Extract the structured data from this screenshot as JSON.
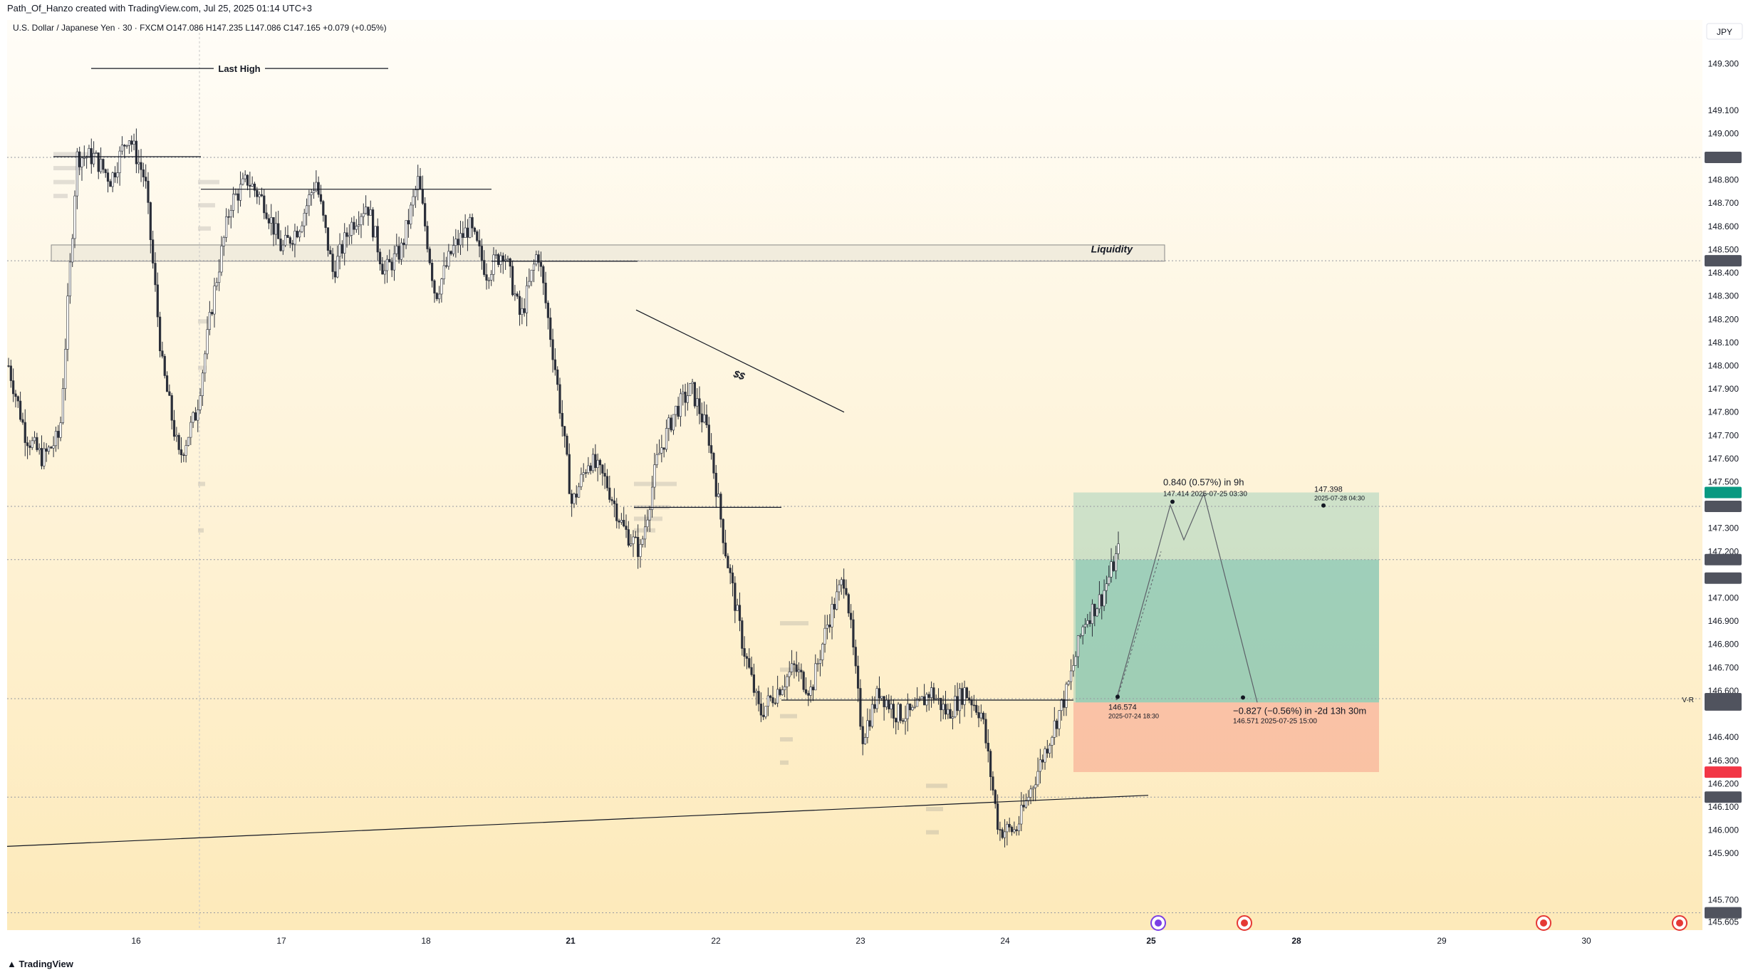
{
  "credit": "Path_Of_Hanzo created with TradingView.com, Jul 25, 2025 01:14 UTC+3",
  "header": {
    "symbol": "U.S. Dollar / Japanese Yen · 30 · FXCM",
    "ohlc": "O147.086 H147.235 L147.086 C147.165 +0.079 (+0.05%)"
  },
  "currency": "JPY",
  "footer": "TradingView",
  "colors": {
    "bg_top": "#fffdf8",
    "bg_bottom": "#fde9b8",
    "candle": "#2a2e39",
    "profit_zone": "#26a69a",
    "loss_zone": "#ef5350",
    "tag_dark": "#50535e",
    "tag_green": "#089981",
    "tag_red": "#f23645"
  },
  "chart_data": {
    "type": "candlestick",
    "symbol": "USDJPY",
    "timeframe": "30",
    "ylim": [
      145.6,
      149.4
    ],
    "y_ticks": [
      149.3,
      149.1,
      149.0,
      148.8,
      148.7,
      148.6,
      148.5,
      148.4,
      148.3,
      148.2,
      148.1,
      148.0,
      147.9,
      147.8,
      147.7,
      147.6,
      147.5,
      147.3,
      147.2,
      147.0,
      146.9,
      146.8,
      146.7,
      146.6,
      146.4,
      146.3,
      146.2,
      146.1,
      146.0,
      145.9,
      145.7,
      145.605
    ],
    "x_labels": [
      "16",
      "17",
      "18",
      "21",
      "22",
      "23",
      "24",
      "25",
      "28",
      "29",
      "30"
    ],
    "path": [
      148.0,
      147.7,
      147.6,
      147.7,
      148.9,
      148.9,
      148.8,
      149.0,
      148.8,
      148.0,
      147.6,
      147.8,
      148.3,
      148.7,
      148.8,
      148.7,
      148.5,
      148.6,
      148.8,
      148.4,
      148.6,
      148.7,
      148.4,
      148.5,
      148.8,
      148.3,
      148.5,
      148.6,
      148.4,
      148.5,
      148.2,
      148.5,
      148.0,
      147.4,
      147.6,
      147.5,
      147.3,
      147.2,
      147.6,
      147.8,
      147.9,
      147.7,
      147.2,
      146.8,
      146.5,
      146.6,
      146.7,
      146.6,
      146.9,
      147.1,
      146.4,
      146.6,
      146.5,
      146.5,
      146.6,
      146.5,
      146.6,
      146.5,
      146.0,
      146.0,
      146.2,
      146.4,
      146.6,
      146.9,
      147.0,
      147.2
    ],
    "price_tags": [
      {
        "label": "148.897",
        "value": 148.897,
        "style": "dark"
      },
      {
        "label": "148.452",
        "value": 148.452,
        "style": "dark"
      },
      {
        "label": "147.454",
        "value": 147.454,
        "style": "green"
      },
      {
        "label": "147.394",
        "value": 147.394,
        "style": "dark"
      },
      {
        "label": "147.165",
        "value": 147.165,
        "style": "dark"
      },
      {
        "label": "15:35",
        "value": 147.085,
        "style": "dark"
      },
      {
        "label": "146.566",
        "value": 146.566,
        "style": "dark"
      },
      {
        "label": "146.550",
        "value": 146.55,
        "style": "dark"
      },
      {
        "label": "146.539",
        "value": 146.539,
        "style": "dark"
      },
      {
        "label": "146.250",
        "value": 146.25,
        "style": "red"
      },
      {
        "label": "146.142",
        "value": 146.142,
        "style": "dark"
      },
      {
        "label": "145.644",
        "value": 145.644,
        "style": "dark"
      }
    ],
    "dotted_levels": [
      148.897,
      148.452,
      147.394,
      147.165,
      146.566,
      146.142,
      145.644
    ],
    "annotations": {
      "last_high": "Last High",
      "liquidity": "Liquidity",
      "ss": "$$",
      "gain": "0.840 (0.57%) in 9h",
      "gain_detail": "147.414      2025-07-25   03:30",
      "target_price": "147.398",
      "target_date": "2025-07-28 04:30",
      "entry_price": "146.574",
      "entry_date": "2025-07-24 18:30",
      "loss": "−0.827 (−0.56%) in -2d 13h 30m",
      "loss_detail": "146.571      2025-07-25   15:00",
      "vr": "V-R"
    },
    "position": {
      "entry": 146.55,
      "target": 147.454,
      "stop": 146.25
    },
    "key_levels": {
      "last_high": 149.28,
      "liquidity_top": 148.52,
      "liquidity_bottom": 148.45
    }
  }
}
